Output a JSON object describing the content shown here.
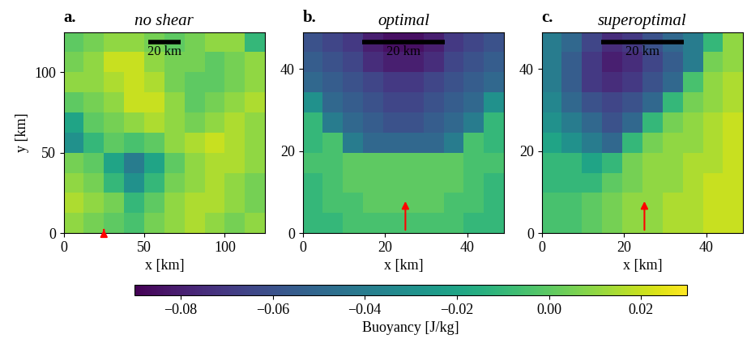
{
  "chart_data": [
    {
      "type": "heatmap",
      "panel_label": "a.",
      "title": "no shear",
      "x_label": "x [km]",
      "y_label": "y [km]",
      "xlim": [
        0,
        125
      ],
      "ylim": [
        0,
        125
      ],
      "xticks": [
        0,
        50,
        100
      ],
      "yticks": [
        0,
        50,
        100
      ],
      "scale_bar_length": 20,
      "scale_bar_label": "20 km",
      "color_label": "Buoyancy [J/kg]",
      "color_range": [
        -0.09,
        0.03
      ],
      "color_ticks": [
        {
          "value": -0.08,
          "label": "−0.08"
        },
        {
          "value": -0.06,
          "label": "−0.06"
        },
        {
          "value": -0.04,
          "label": "−0.04"
        },
        {
          "value": -0.02,
          "label": "−0.02"
        },
        {
          "value": 0.0,
          "label": "0.00"
        },
        {
          "value": 0.02,
          "label": "0.02"
        }
      ],
      "cells": [
        [
          0.01,
          0.005,
          0.0,
          -0.005,
          0.005,
          0.01,
          0.015,
          0.01,
          0.005,
          0.01
        ],
        [
          0.015,
          0.01,
          0.005,
          -0.01,
          0.0,
          0.01,
          0.015,
          0.015,
          0.01,
          0.005
        ],
        [
          0.01,
          0.005,
          -0.01,
          -0.03,
          -0.01,
          0.005,
          0.01,
          0.015,
          0.01,
          0.005
        ],
        [
          0.005,
          0.0,
          -0.02,
          -0.04,
          -0.02,
          0.0,
          0.01,
          0.015,
          0.015,
          0.01
        ],
        [
          -0.03,
          -0.01,
          0.0,
          -0.005,
          0.0,
          0.01,
          0.015,
          0.02,
          0.015,
          0.01
        ],
        [
          -0.02,
          0.0,
          0.005,
          0.01,
          0.015,
          0.01,
          0.005,
          0.01,
          0.015,
          0.01
        ],
        [
          0.0,
          0.005,
          0.01,
          0.02,
          0.02,
          0.01,
          0.0,
          0.005,
          0.01,
          0.015
        ],
        [
          0.01,
          0.01,
          0.015,
          0.02,
          0.015,
          0.005,
          0.0,
          0.0,
          0.005,
          0.01
        ],
        [
          0.005,
          0.01,
          0.02,
          0.02,
          0.01,
          0.005,
          0.005,
          0.0,
          0.005,
          0.01
        ],
        [
          0.0,
          0.005,
          0.01,
          0.01,
          0.005,
          0.0,
          0.005,
          0.01,
          0.01,
          -0.01
        ]
      ]
    },
    {
      "type": "heatmap",
      "panel_label": "b.",
      "title": "optimal",
      "x_label": "x [km]",
      "xlim": [
        0,
        49
      ],
      "ylim": [
        0,
        49
      ],
      "xticks": [
        0,
        20,
        40
      ],
      "yticks": [
        0,
        20,
        40
      ],
      "scale_bar_length": 20,
      "scale_bar_label": "20 km",
      "cells": [
        [
          -0.01,
          -0.01,
          -0.005,
          -0.005,
          -0.005,
          -0.005,
          -0.005,
          -0.005,
          -0.01,
          -0.01
        ],
        [
          -0.01,
          -0.005,
          -0.005,
          0.0,
          0.0,
          0.0,
          0.0,
          -0.005,
          -0.005,
          -0.01
        ],
        [
          -0.01,
          -0.005,
          0.0,
          0.0,
          0.0,
          0.0,
          0.0,
          0.0,
          -0.005,
          -0.01
        ],
        [
          -0.005,
          -0.005,
          0.0,
          0.0,
          0.0,
          0.0,
          0.0,
          0.0,
          -0.005,
          -0.005
        ],
        [
          -0.01,
          -0.005,
          -0.04,
          -0.05,
          -0.05,
          -0.05,
          -0.05,
          -0.04,
          -0.005,
          -0.01
        ],
        [
          -0.01,
          -0.04,
          -0.05,
          -0.055,
          -0.06,
          -0.06,
          -0.055,
          -0.05,
          -0.04,
          -0.01
        ],
        [
          -0.03,
          -0.05,
          -0.055,
          -0.06,
          -0.065,
          -0.065,
          -0.06,
          -0.055,
          -0.05,
          -0.03
        ],
        [
          -0.05,
          -0.055,
          -0.06,
          -0.065,
          -0.07,
          -0.07,
          -0.065,
          -0.06,
          -0.055,
          -0.05
        ],
        [
          -0.055,
          -0.06,
          -0.065,
          -0.075,
          -0.08,
          -0.08,
          -0.075,
          -0.065,
          -0.06,
          -0.055
        ],
        [
          -0.06,
          -0.065,
          -0.07,
          -0.08,
          -0.085,
          -0.085,
          -0.08,
          -0.07,
          -0.065,
          -0.06
        ]
      ]
    },
    {
      "type": "heatmap",
      "panel_label": "c.",
      "title": "superoptimal",
      "x_label": "x [km]",
      "xlim": [
        0,
        49
      ],
      "ylim": [
        0,
        49
      ],
      "xticks": [
        0,
        20,
        40
      ],
      "yticks": [
        0,
        20,
        40
      ],
      "scale_bar_length": 20,
      "scale_bar_label": "20 km",
      "cells": [
        [
          -0.005,
          -0.005,
          0.0,
          0.005,
          0.01,
          0.01,
          0.015,
          0.015,
          0.02,
          0.02
        ],
        [
          -0.005,
          -0.005,
          0.0,
          0.005,
          0.01,
          0.01,
          0.015,
          0.015,
          0.02,
          0.02
        ],
        [
          -0.01,
          -0.01,
          -0.01,
          0.0,
          0.005,
          0.01,
          0.01,
          0.015,
          0.02,
          0.02
        ],
        [
          -0.01,
          -0.01,
          -0.02,
          -0.01,
          0.005,
          0.01,
          0.01,
          0.015,
          0.015,
          0.02
        ],
        [
          -0.02,
          -0.03,
          -0.04,
          -0.05,
          -0.01,
          0.005,
          0.01,
          0.01,
          0.015,
          0.02
        ],
        [
          -0.03,
          -0.04,
          -0.05,
          -0.06,
          -0.05,
          -0.01,
          0.005,
          0.01,
          0.015,
          0.02
        ],
        [
          -0.035,
          -0.05,
          -0.06,
          -0.065,
          -0.06,
          -0.05,
          -0.01,
          0.005,
          0.01,
          0.015
        ],
        [
          -0.04,
          -0.055,
          -0.07,
          -0.075,
          -0.07,
          -0.06,
          -0.05,
          -0.005,
          0.01,
          0.015
        ],
        [
          -0.04,
          -0.055,
          -0.07,
          -0.08,
          -0.075,
          -0.065,
          -0.055,
          -0.04,
          0.005,
          0.01
        ],
        [
          -0.04,
          -0.05,
          -0.065,
          -0.075,
          -0.07,
          -0.06,
          -0.05,
          -0.04,
          -0.01,
          0.01
        ]
      ]
    }
  ]
}
